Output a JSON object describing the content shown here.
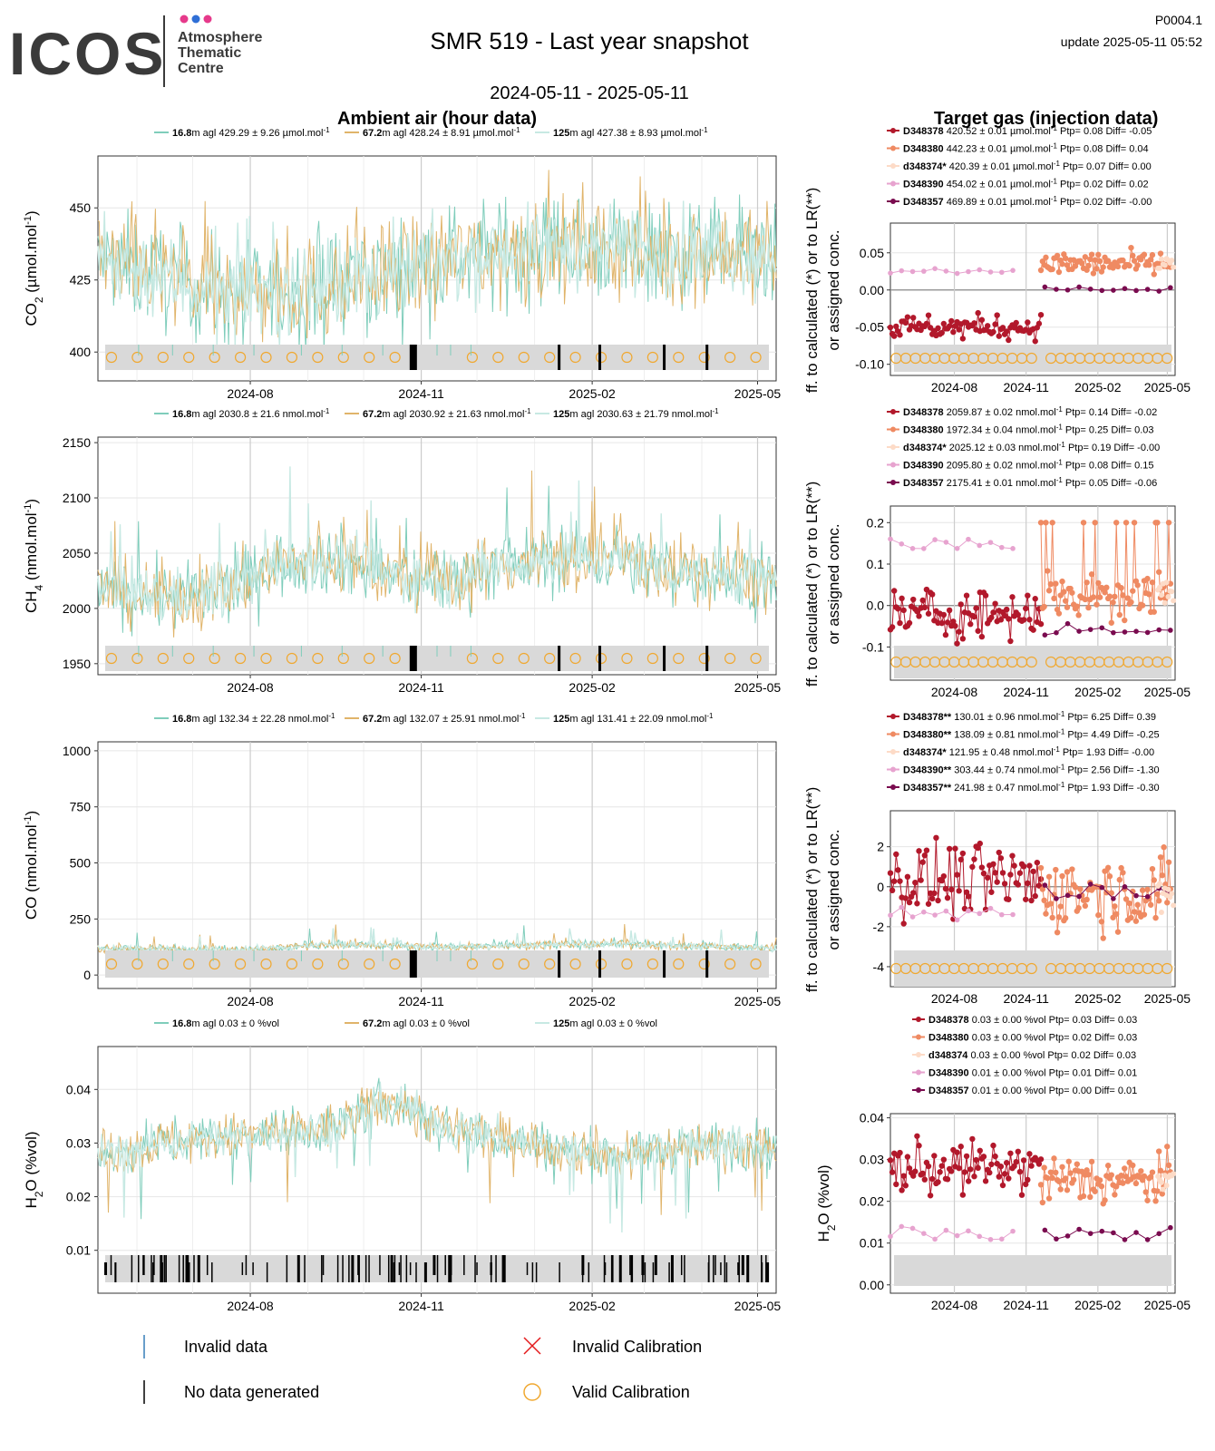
{
  "header": {
    "logo_word": "ICOS",
    "logo_tagline": [
      "Atmosphere",
      "Thematic",
      "Centre"
    ],
    "title": "SMR 519 - Last year snapshot",
    "date_range": "2024-05-11 - 2025-05-11",
    "code": "P0004.1",
    "update": "update  2025-05-11 05:52"
  },
  "sections": {
    "ambient": "Ambient air (hour data)",
    "target": "Target gas (injection data)"
  },
  "colors": {
    "h16": "#7fcdbb",
    "h67": "#e0b46a",
    "h125": "#c7e9e3",
    "D348378": "#b2182b",
    "D348380": "#ef8a62",
    "d348374": "#fddbc7",
    "D348390": "#e7a3cf",
    "D348357": "#7a0b4f",
    "calib": "#f0a830",
    "invalid_cal": "#e41a1c",
    "invalid_data": "#377eb8",
    "panel_band": "#d9d9d9"
  },
  "x_ticks": [
    "2024-08",
    "2024-11",
    "2025-02",
    "2025-05"
  ],
  "target_ylabel": "ff. to calculated (*) or to LR(**) or assigned conc.",
  "panels": [
    {
      "ylabel": "CO2 (µmol.mol-1)",
      "ylabel_parts": {
        "main": "CO",
        "sub": "2",
        "unit": " (µmol.mol",
        "sup": "-1",
        "end": ")"
      },
      "yticks": [
        "400",
        "425",
        "450"
      ],
      "legend": [
        {
          "height": "16.8",
          "text": "m agl 429.29 ± 9.26 µmol.mol",
          "sup": "-1"
        },
        {
          "height": "67.2",
          "text": "m agl 428.24 ± 8.91 µmol.mol",
          "sup": "-1"
        },
        {
          "height": "125",
          "text": "m agl 427.38 ± 8.93 µmol.mol",
          "sup": "-1"
        }
      ],
      "target_legend": [
        {
          "name": "D348378",
          "text": "420.52 ± 0.01 µmol.mol",
          "sup": "-1",
          "rest": " Ptp= 0.08 Diff= -0.05"
        },
        {
          "name": "D348380",
          "text": "442.23 ± 0.01 µmol.mol",
          "sup": "-1",
          "rest": " Ptp= 0.08 Diff= 0.04"
        },
        {
          "name": "d348374*",
          "text": "420.39 ± 0.01 µmol.mol",
          "sup": "-1",
          "rest": " Ptp= 0.07 Diff= 0.00"
        },
        {
          "name": "D348390",
          "text": "454.02 ± 0.01 µmol.mol",
          "sup": "-1",
          "rest": " Ptp= 0.02 Diff= 0.02"
        },
        {
          "name": "D348357",
          "text": "469.89 ± 0.01 µmol.mol",
          "sup": "-1",
          "rest": " Ptp= 0.02 Diff= -0.00"
        }
      ],
      "target_yticks": [
        "-0.10",
        "-0.05",
        "0.00",
        "0.05"
      ]
    },
    {
      "ylabel": "CH4 (nmol.mol-1)",
      "ylabel_parts": {
        "main": "CH",
        "sub": "4",
        "unit": " (nmol.mol",
        "sup": "-1",
        "end": ")"
      },
      "yticks": [
        "1950",
        "2000",
        "2050",
        "2100",
        "2150"
      ],
      "legend": [
        {
          "height": "16.8",
          "text": "m agl 2030.8 ± 21.6 nmol.mol",
          "sup": "-1"
        },
        {
          "height": "67.2",
          "text": "m agl 2030.92 ± 21.63 nmol.mol",
          "sup": "-1"
        },
        {
          "height": "125",
          "text": "m agl 2030.63 ± 21.79 nmol.mol",
          "sup": "-1"
        }
      ],
      "target_legend": [
        {
          "name": "D348378",
          "text": "2059.87 ± 0.02 nmol.mol",
          "sup": "-1",
          "rest": " Ptp= 0.14 Diff= -0.02"
        },
        {
          "name": "D348380",
          "text": "1972.34 ± 0.04 nmol.mol",
          "sup": "-1",
          "rest": " Ptp= 0.25 Diff= 0.03"
        },
        {
          "name": "d348374*",
          "text": "2025.12 ± 0.03 nmol.mol",
          "sup": "-1",
          "rest": " Ptp= 0.19 Diff= -0.00"
        },
        {
          "name": "D348390",
          "text": "2095.80 ± 0.02 nmol.mol",
          "sup": "-1",
          "rest": " Ptp= 0.08 Diff= 0.15"
        },
        {
          "name": "D348357",
          "text": "2175.41 ± 0.01 nmol.mol",
          "sup": "-1",
          "rest": " Ptp= 0.05 Diff= -0.06"
        }
      ],
      "target_yticks": [
        "-0.1",
        "0.0",
        "0.1",
        "0.2"
      ]
    },
    {
      "ylabel": "CO (nmol.mol-1)",
      "ylabel_parts": {
        "main": "CO",
        "sub": "",
        "unit": " (nmol.mol",
        "sup": "-1",
        "end": ")"
      },
      "yticks": [
        "0",
        "250",
        "500",
        "750",
        "1000"
      ],
      "legend": [
        {
          "height": "16.8",
          "text": "m agl 132.34 ± 22.28 nmol.mol",
          "sup": "-1"
        },
        {
          "height": "67.2",
          "text": "m agl 132.07 ± 25.91 nmol.mol",
          "sup": "-1"
        },
        {
          "height": "125",
          "text": "m agl 131.41 ± 22.09 nmol.mol",
          "sup": "-1"
        }
      ],
      "target_legend": [
        {
          "name": "D348378**",
          "text": "130.01 ± 0.96 nmol.mol",
          "sup": "-1",
          "rest": " Ptp= 6.25 Diff= 0.39"
        },
        {
          "name": "D348380**",
          "text": "138.09 ± 0.81 nmol.mol",
          "sup": "-1",
          "rest": " Ptp= 4.49 Diff= -0.25"
        },
        {
          "name": "d348374*",
          "text": "121.95 ± 0.48 nmol.mol",
          "sup": "-1",
          "rest": " Ptp= 1.93 Diff= -0.00"
        },
        {
          "name": "D348390**",
          "text": "303.44 ± 0.74 nmol.mol",
          "sup": "-1",
          "rest": " Ptp= 2.56 Diff= -1.30"
        },
        {
          "name": "D348357**",
          "text": "241.98 ± 0.47 nmol.mol",
          "sup": "-1",
          "rest": " Ptp= 1.93 Diff= -0.30"
        }
      ],
      "target_yticks": [
        "-4",
        "-2",
        "0",
        "2"
      ]
    },
    {
      "ylabel": "H2O (%vol)",
      "ylabel_parts": {
        "main": "H",
        "sub": "2",
        "unit": "O (%vol)",
        "sup": "",
        "end": ""
      },
      "yticks": [
        "0.01",
        "0.02",
        "0.03",
        "0.04"
      ],
      "legend": [
        {
          "height": "16.8",
          "text": "m agl 0.03 ± 0 %vol",
          "sup": ""
        },
        {
          "height": "67.2",
          "text": "m agl 0.03 ± 0 %vol",
          "sup": ""
        },
        {
          "height": "125",
          "text": "m agl 0.03 ± 0 %vol",
          "sup": ""
        }
      ],
      "target_legend": [
        {
          "name": "D348378",
          "text": "0.03 ± 0.00 %vol",
          "sup": "",
          "rest": " Ptp= 0.03 Diff= 0.03"
        },
        {
          "name": "D348380",
          "text": "0.03 ± 0.00 %vol",
          "sup": "",
          "rest": " Ptp= 0.02 Diff= 0.03"
        },
        {
          "name": "d348374",
          "text": "0.03 ± 0.00 %vol",
          "sup": "",
          "rest": " Ptp= 0.02 Diff= 0.03"
        },
        {
          "name": "D348390",
          "text": "0.01 ± 0.00 %vol",
          "sup": "",
          "rest": " Ptp= 0.01 Diff= 0.01"
        },
        {
          "name": "D348357",
          "text": "0.01 ± 0.00 %vol",
          "sup": "",
          "rest": " Ptp= 0.00 Diff= 0.01"
        }
      ],
      "target_ylabel": "H2O (%vol)",
      "target_yticks": [
        "0.00",
        "0.01",
        "0.02",
        "0.03",
        "0.04"
      ]
    }
  ],
  "bottom_legend": {
    "invalid_data": "Invalid data",
    "no_data": "No data generated",
    "invalid_calibration": "Invalid Calibration",
    "valid_calibration": "Valid Calibration"
  },
  "chart_data": [
    {
      "type": "line",
      "title": "Ambient air (hour data)",
      "ylabel": "CO2 (µmol.mol-1)",
      "x_range": [
        "2024-05-11",
        "2025-05-11"
      ],
      "ylim": [
        390,
        468
      ],
      "series": [
        {
          "name": "16.8m agl",
          "mean": 429.29,
          "sd": 9.26
        },
        {
          "name": "67.2m agl",
          "mean": 428.24,
          "sd": 8.91
        },
        {
          "name": "125m agl",
          "mean": 427.38,
          "sd": 8.93
        }
      ],
      "profile": {
        "x": [
          "2024-05-15",
          "2024-06-15",
          "2024-07-15",
          "2024-08-15",
          "2024-09-15",
          "2024-10-15",
          "2024-11-15",
          "2024-12-15",
          "2025-01-15",
          "2025-02-15",
          "2025-03-15",
          "2025-04-15",
          "2025-05-10"
        ],
        "y": [
          431,
          426,
          420,
          420,
          423,
          427,
          432,
          435,
          437,
          436,
          435,
          435,
          433
        ]
      }
    },
    {
      "type": "line",
      "ylabel": "CH4 (nmol.mol-1)",
      "ylim": [
        1940,
        2155
      ],
      "series": [
        {
          "name": "16.8m agl",
          "mean": 2030.8,
          "sd": 21.6
        },
        {
          "name": "67.2m agl",
          "mean": 2030.92,
          "sd": 21.63
        },
        {
          "name": "125m agl",
          "mean": 2030.63,
          "sd": 21.79
        }
      ],
      "profile": {
        "x": [
          "2024-05-15",
          "2024-06-15",
          "2024-07-15",
          "2024-08-15",
          "2024-09-15",
          "2024-10-15",
          "2024-11-15",
          "2024-12-15",
          "2025-01-15",
          "2025-02-15",
          "2025-03-15",
          "2025-04-15",
          "2025-05-10"
        ],
        "y": [
          2015,
          2010,
          2012,
          2040,
          2045,
          2030,
          2025,
          2040,
          2045,
          2045,
          2035,
          2030,
          2025
        ]
      }
    },
    {
      "type": "line",
      "ylabel": "CO (nmol.mol-1)",
      "ylim": [
        -60,
        1040
      ],
      "series": [
        {
          "name": "16.8m agl",
          "mean": 132.34,
          "sd": 22.28
        },
        {
          "name": "67.2m agl",
          "mean": 132.07,
          "sd": 25.91
        },
        {
          "name": "125m agl",
          "mean": 131.41,
          "sd": 22.09
        }
      ],
      "profile": {
        "x": [
          "2024-05-15",
          "2024-06-15",
          "2024-07-15",
          "2024-08-15",
          "2024-09-15",
          "2024-10-15",
          "2024-11-15",
          "2024-12-15",
          "2025-01-15",
          "2025-02-15",
          "2025-03-15",
          "2025-04-15",
          "2025-05-10"
        ],
        "y": [
          120,
          118,
          110,
          120,
          140,
          130,
          125,
          130,
          135,
          140,
          130,
          125,
          120
        ]
      }
    },
    {
      "type": "line",
      "ylabel": "H2O (%vol)",
      "ylim": [
        0.002,
        0.048
      ],
      "series": [
        {
          "name": "16.8m agl",
          "mean": 0.03,
          "sd": 0
        },
        {
          "name": "67.2m agl",
          "mean": 0.03,
          "sd": 0
        },
        {
          "name": "125m agl",
          "mean": 0.03,
          "sd": 0
        }
      ],
      "profile": {
        "x": [
          "2024-05-15",
          "2024-06-15",
          "2024-07-15",
          "2024-08-15",
          "2024-09-15",
          "2024-10-15",
          "2024-11-15",
          "2024-12-15",
          "2025-01-15",
          "2025-02-15",
          "2025-03-15",
          "2025-04-15",
          "2025-05-10"
        ],
        "y": [
          0.028,
          0.03,
          0.031,
          0.032,
          0.033,
          0.038,
          0.033,
          0.031,
          0.029,
          0.028,
          0.029,
          0.03,
          0.029
        ]
      }
    },
    {
      "type": "scatter",
      "title": "Target gas (injection data)",
      "ylim": [
        -0.115,
        0.09
      ],
      "series": [
        {
          "name": "D348378",
          "x_range": [
            "2024-05-11",
            "2024-11-20"
          ],
          "level": -0.05
        },
        {
          "name": "D348380",
          "x_range": [
            "2024-11-20",
            "2025-05-05"
          ],
          "level": 0.035
        },
        {
          "name": "D348390",
          "x_range": [
            "2024-05-11",
            "2024-10-15"
          ],
          "level": 0.025
        },
        {
          "name": "D348357",
          "x_range": [
            "2024-11-25",
            "2025-05-05"
          ],
          "level": 0.0
        }
      ]
    },
    {
      "type": "scatter",
      "ylim": [
        -0.18,
        0.24
      ],
      "series": [
        {
          "name": "D348378",
          "x_range": [
            "2024-05-11",
            "2024-11-20"
          ],
          "level": -0.02
        },
        {
          "name": "D348380",
          "x_range": [
            "2024-11-20",
            "2025-05-05"
          ],
          "level": 0.03
        },
        {
          "name": "D348390",
          "x_range": [
            "2024-05-11",
            "2024-10-15"
          ],
          "level": 0.15
        },
        {
          "name": "D348357",
          "x_range": [
            "2024-11-25",
            "2025-05-05"
          ],
          "level": -0.06
        }
      ]
    },
    {
      "type": "scatter",
      "ylim": [
        -5,
        3.8
      ],
      "series": [
        {
          "name": "D348378",
          "x_range": [
            "2024-05-11",
            "2024-11-20"
          ],
          "level": 0.3
        },
        {
          "name": "D348380",
          "x_range": [
            "2024-11-20",
            "2025-05-05"
          ],
          "level": -0.3
        },
        {
          "name": "D348390",
          "x_range": [
            "2024-05-11",
            "2024-10-15"
          ],
          "level": -1.3
        },
        {
          "name": "D348357",
          "x_range": [
            "2024-11-25",
            "2025-05-05"
          ],
          "level": -0.3
        }
      ]
    },
    {
      "type": "scatter",
      "ylim": [
        -0.002,
        0.041
      ],
      "series": [
        {
          "name": "D348378",
          "x_range": [
            "2024-05-11",
            "2024-11-20"
          ],
          "level": 0.028
        },
        {
          "name": "D348380",
          "x_range": [
            "2024-11-20",
            "2025-05-05"
          ],
          "level": 0.025
        },
        {
          "name": "D348390",
          "x_range": [
            "2024-05-11",
            "2024-10-15"
          ],
          "level": 0.0125
        },
        {
          "name": "D348357",
          "x_range": [
            "2024-11-25",
            "2025-05-05"
          ],
          "level": 0.012
        }
      ]
    }
  ]
}
